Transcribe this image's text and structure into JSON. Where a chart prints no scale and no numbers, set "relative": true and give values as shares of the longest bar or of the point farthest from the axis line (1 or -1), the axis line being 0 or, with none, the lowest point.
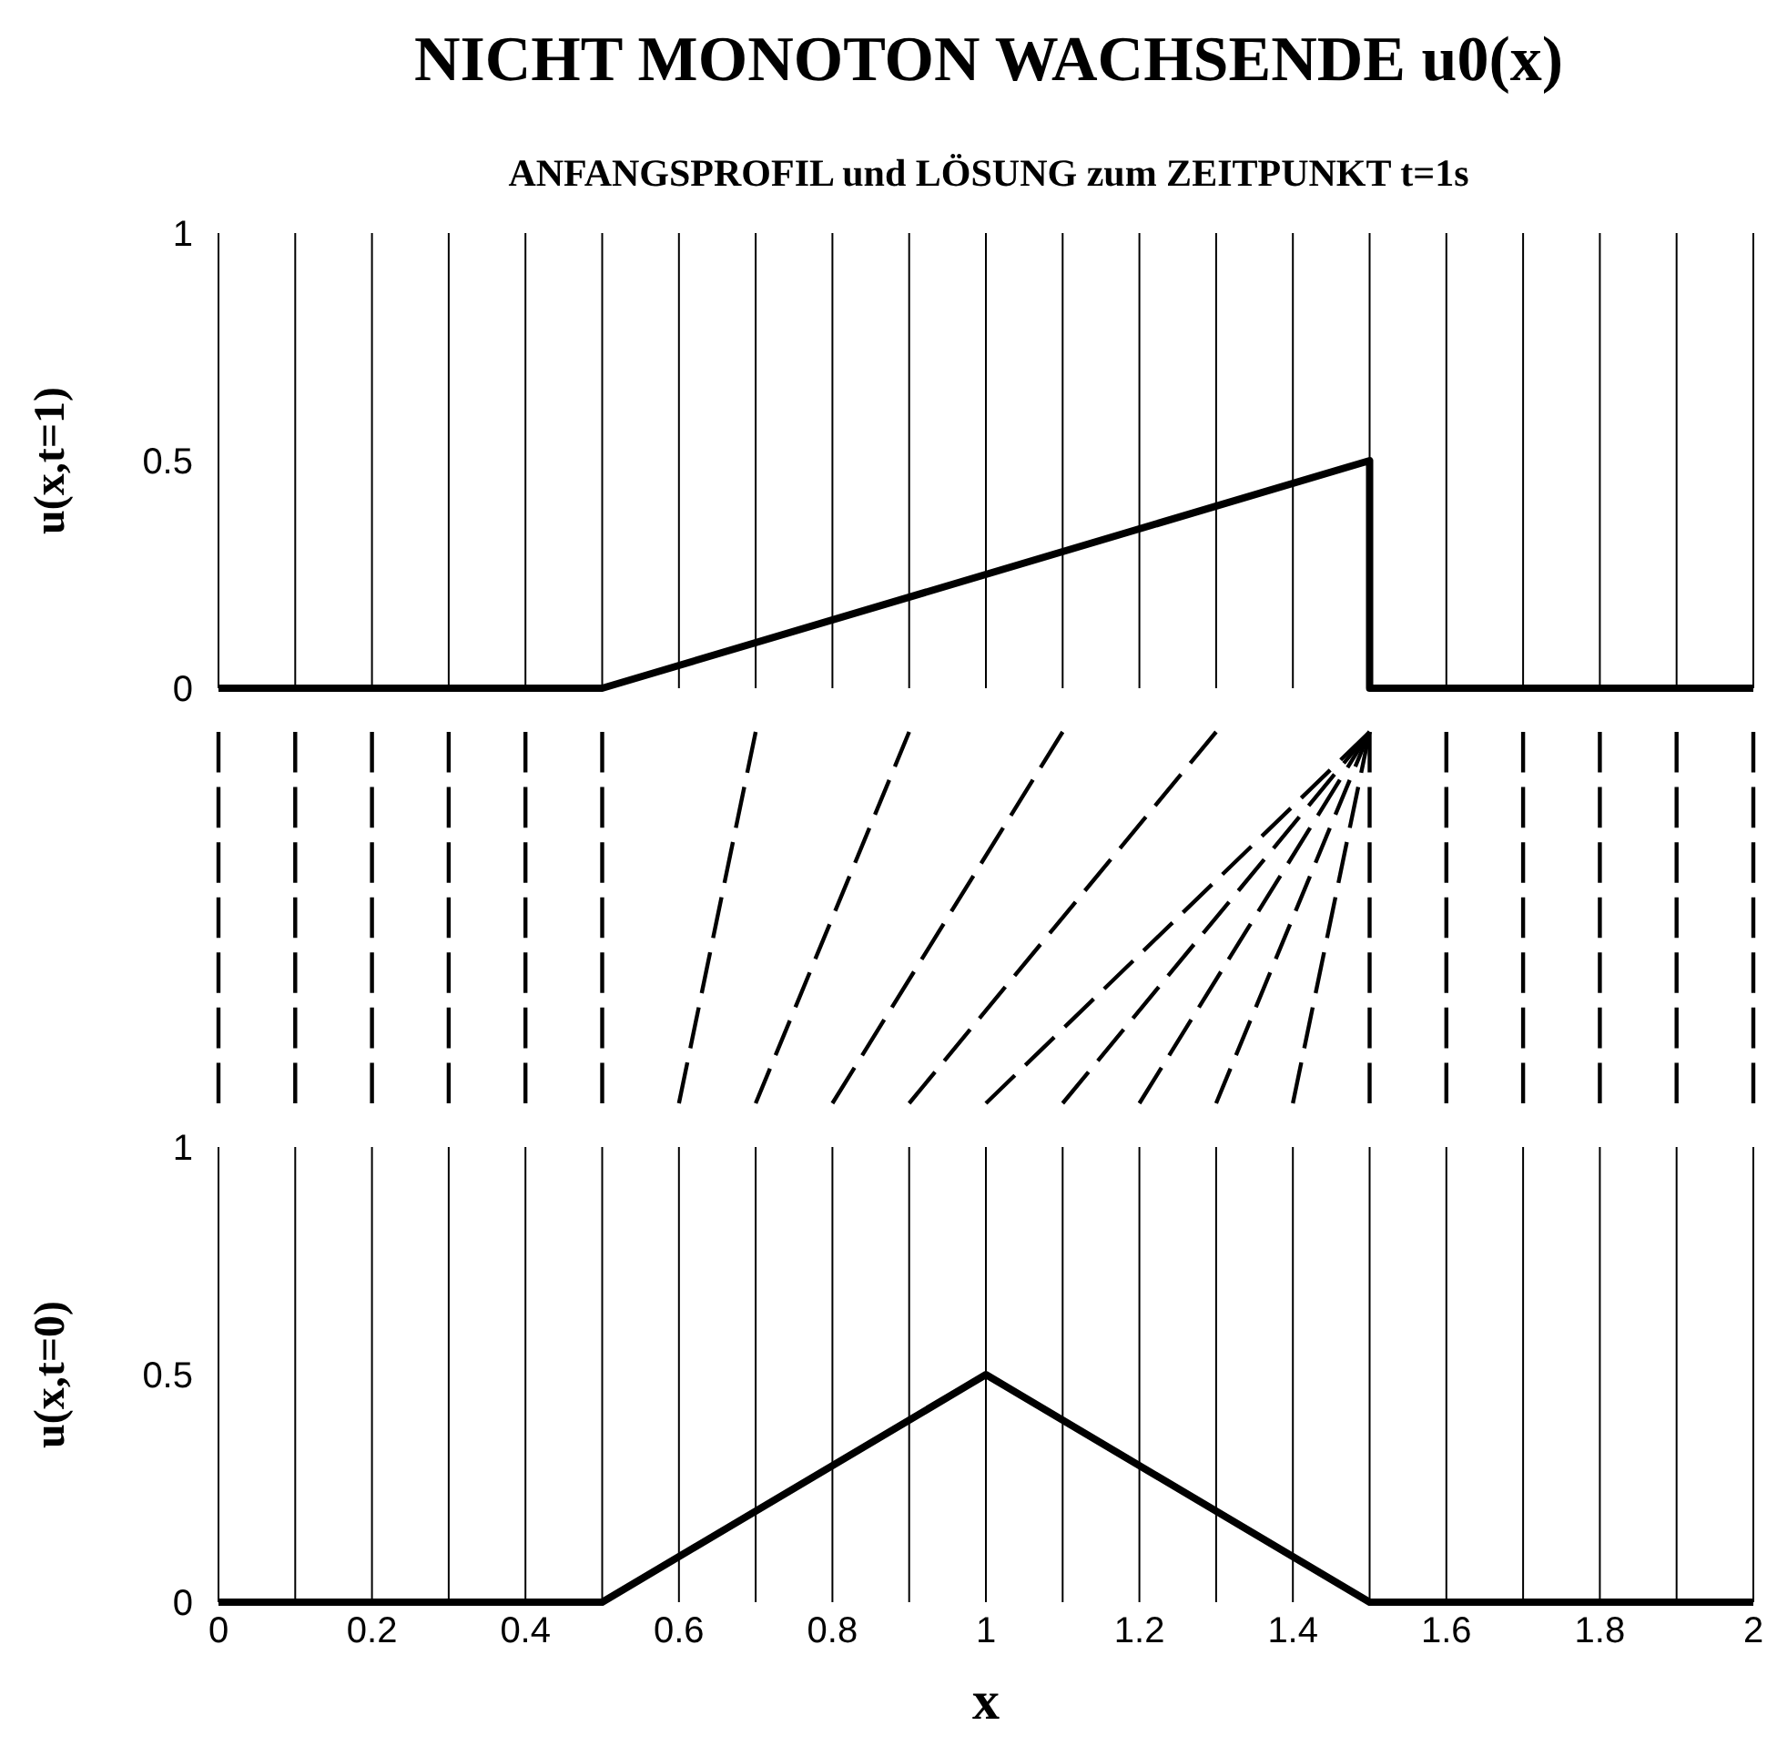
{
  "chart_data": [
    {
      "type": "line",
      "title": "NICHT MONOTON WACHSENDE u0(x)",
      "subtitle": "ANFANGSPROFIL und LÖSUNG zum ZEITPUNKT t=1s",
      "ylabel": "u(x,t=1)",
      "x": [
        0,
        0.5,
        1.5,
        1.5,
        2
      ],
      "xlim": [
        0,
        2
      ],
      "ylim": [
        0,
        1
      ],
      "yticks": [
        0,
        0.5,
        1
      ],
      "xticks": [
        0,
        {
          "value": 0.1,
          "label": null
        },
        0.2,
        {
          "value": 0.3,
          "label": null
        },
        0.4,
        {
          "value": 0.5,
          "label": null
        },
        0.6,
        {
          "value": 0.7,
          "label": null
        },
        0.8,
        {
          "value": 0.9,
          "label": null
        },
        1,
        {
          "value": 1.1,
          "label": null
        },
        1.2,
        {
          "value": 1.3,
          "label": null
        },
        1.4,
        {
          "value": 1.5,
          "label": null
        },
        1.6,
        {
          "value": 1.7,
          "label": null
        },
        1.8,
        {
          "value": 1.9,
          "label": null
        },
        2
      ],
      "grid": "x",
      "tick_labels": "y",
      "series": [
        {
          "color": "#000000",
          "values": [
            0,
            0,
            0.5,
            0,
            0
          ]
        }
      ]
    },
    {
      "type": "line",
      "relative": true,
      "xlim": [
        0,
        2
      ],
      "tick_labels": false,
      "line_style": "dashed",
      "grid": "x",
      "xticks": [
        {
          "value": 0,
          "label": null
        },
        {
          "value": 0.1,
          "label": null
        },
        {
          "value": 0.2,
          "label": null
        },
        {
          "value": 0.3,
          "label": null
        },
        {
          "value": 0.4,
          "label": null
        },
        {
          "value": 0.5,
          "label": null
        },
        {
          "value": 1.5,
          "label": null
        },
        {
          "value": 1.6,
          "label": null
        },
        {
          "value": 1.7,
          "label": null
        },
        {
          "value": 1.8,
          "label": null
        },
        {
          "value": 1.9,
          "label": null
        },
        {
          "value": 2,
          "label": null
        }
      ],
      "series": [
        {
          "color": "#000000",
          "x": [
            0.6,
            0.7
          ],
          "values": [
            0,
            1
          ]
        },
        {
          "color": "#000000",
          "x": [
            0.7,
            0.9
          ],
          "values": [
            0,
            1
          ]
        },
        {
          "color": "#000000",
          "x": [
            0.8,
            1.1
          ],
          "values": [
            0,
            1
          ]
        },
        {
          "color": "#000000",
          "x": [
            0.9,
            1.3
          ],
          "values": [
            0,
            1
          ]
        },
        {
          "color": "#000000",
          "x": [
            1,
            1.5
          ],
          "values": [
            0,
            1
          ]
        },
        {
          "color": "#000000",
          "x": [
            1.1,
            1.5
          ],
          "values": [
            0,
            1
          ]
        },
        {
          "color": "#000000",
          "x": [
            1.2,
            1.5
          ],
          "values": [
            0,
            1
          ]
        },
        {
          "color": "#000000",
          "x": [
            1.3,
            1.5
          ],
          "values": [
            0,
            1
          ]
        },
        {
          "color": "#000000",
          "x": [
            1.4,
            1.5
          ],
          "values": [
            0,
            1
          ]
        }
      ]
    },
    {
      "type": "line",
      "xlabel": "x",
      "ylabel": "u(x,t=0)",
      "x": [
        0,
        0.5,
        1,
        1.5,
        2
      ],
      "xlim": [
        0,
        2
      ],
      "ylim": [
        0,
        1
      ],
      "yticks": [
        0,
        0.5,
        1
      ],
      "xticks": [
        0,
        {
          "value": 0.1,
          "label": null
        },
        0.2,
        {
          "value": 0.3,
          "label": null
        },
        0.4,
        {
          "value": 0.5,
          "label": null
        },
        0.6,
        {
          "value": 0.7,
          "label": null
        },
        0.8,
        {
          "value": 0.9,
          "label": null
        },
        1,
        {
          "value": 1.1,
          "label": null
        },
        1.2,
        {
          "value": 1.3,
          "label": null
        },
        1.4,
        {
          "value": 1.5,
          "label": null
        },
        1.6,
        {
          "value": 1.7,
          "label": null
        },
        1.8,
        {
          "value": 1.9,
          "label": null
        },
        2
      ],
      "grid": "x",
      "series": [
        {
          "color": "#000000",
          "values": [
            0,
            0,
            0.5,
            0,
            0
          ]
        }
      ]
    }
  ]
}
